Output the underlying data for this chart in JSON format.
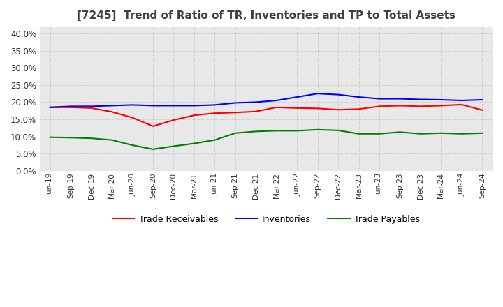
{
  "title": "[7245]  Trend of Ratio of TR, Inventories and TP to Total Assets",
  "x_labels": [
    "Jun-19",
    "Sep-19",
    "Dec-19",
    "Mar-20",
    "Jun-20",
    "Sep-20",
    "Dec-20",
    "Mar-21",
    "Jun-21",
    "Sep-21",
    "Dec-21",
    "Mar-22",
    "Jun-22",
    "Sep-22",
    "Dec-22",
    "Mar-23",
    "Jun-23",
    "Sep-23",
    "Dec-23",
    "Mar-24",
    "Jun-24",
    "Sep-24"
  ],
  "trade_receivables": [
    0.185,
    0.185,
    0.183,
    0.172,
    0.155,
    0.13,
    0.148,
    0.162,
    0.168,
    0.17,
    0.173,
    0.185,
    0.183,
    0.182,
    0.178,
    0.18,
    0.188,
    0.19,
    0.188,
    0.19,
    0.193,
    0.177
  ],
  "inventories": [
    0.185,
    0.188,
    0.188,
    0.19,
    0.192,
    0.19,
    0.19,
    0.19,
    0.192,
    0.198,
    0.2,
    0.205,
    0.215,
    0.225,
    0.222,
    0.215,
    0.21,
    0.21,
    0.208,
    0.207,
    0.205,
    0.207
  ],
  "trade_payables": [
    0.098,
    0.097,
    0.095,
    0.09,
    0.075,
    0.063,
    0.072,
    0.08,
    0.09,
    0.11,
    0.115,
    0.117,
    0.117,
    0.12,
    0.118,
    0.108,
    0.108,
    0.113,
    0.108,
    0.11,
    0.108,
    0.11
  ],
  "ylim": [
    0.0,
    0.42
  ],
  "yticks": [
    0.0,
    0.05,
    0.1,
    0.15,
    0.2,
    0.25,
    0.3,
    0.35,
    0.4
  ],
  "tr_color": "#ff0000",
  "inv_color": "#0000ff",
  "tp_color": "#008000",
  "background_color": "#ffffff",
  "plot_bg_color": "#e8e8e8",
  "grid_color": "#aaaaaa",
  "title_color": "#404040",
  "title_fontsize": 11
}
